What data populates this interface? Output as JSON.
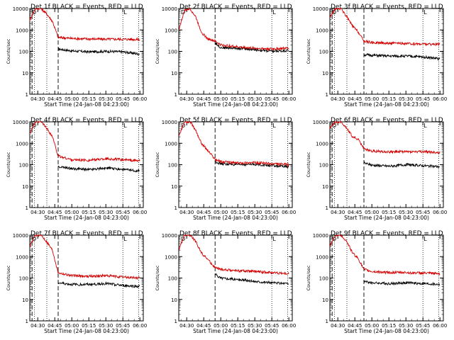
{
  "chart_data": [
    {
      "type": "line",
      "title": "Det 1f BLACK = Events, RED = LLD",
      "xlabel": "Start Time (24-Jan-08 04:23:00)",
      "ylabel": "Counts/sec",
      "yscale": "log",
      "ylim": [
        1,
        10000
      ],
      "xlim": [
        "04:23",
        "06:03"
      ],
      "x_ticks": [
        "04:30",
        "04:45",
        "05:00",
        "05:15",
        "05:30",
        "05:45",
        "06:00"
      ],
      "y_ticks": [
        "1",
        "10",
        "100",
        "1000",
        "10000"
      ],
      "labels": [
        "D",
        "L"
      ],
      "vlines": {
        "dotted": [
          "04:27",
          "04:38",
          "05:45",
          "05:59"
        ],
        "dashed": [
          "04:25",
          "04:48"
        ]
      },
      "series": [
        {
          "name": "Events",
          "color": "#000000",
          "x": [
            "04:48",
            "05:00",
            "05:15",
            "05:30",
            "05:45",
            "06:00"
          ],
          "y": [
            130,
            105,
            95,
            100,
            95,
            75
          ]
        },
        {
          "name": "LLD",
          "color": "#d40000",
          "x": [
            "04:23",
            "04:28",
            "04:33",
            "04:38",
            "04:43",
            "04:48",
            "05:00",
            "05:15",
            "05:30",
            "05:45",
            "06:00"
          ],
          "y": [
            3000,
            10000,
            10000,
            5500,
            2500,
            450,
            400,
            380,
            370,
            370,
            360
          ]
        }
      ]
    },
    {
      "type": "line",
      "title": "Det 2f BLACK = Events, RED = LLD",
      "xlabel": "Start Time (24-Jan-08 04:23:00)",
      "ylabel": "Counts/sec",
      "yscale": "log",
      "ylim": [
        1,
        10000
      ],
      "xlim": [
        "04:23",
        "06:03"
      ],
      "x_ticks": [
        "04:30",
        "04:45",
        "05:00",
        "05:15",
        "05:30",
        "05:45",
        "06:00"
      ],
      "y_ticks": [
        "1",
        "10",
        "100",
        "1000",
        "10000"
      ],
      "labels": [
        "D",
        "L"
      ],
      "vlines": {
        "dotted": [
          "05:45",
          "05:59"
        ],
        "dashed": [
          "04:55"
        ]
      },
      "series": [
        {
          "name": "Events",
          "color": "#000000",
          "x": [
            "04:55",
            "05:00",
            "05:15",
            "05:30",
            "05:45",
            "06:00"
          ],
          "y": [
            250,
            150,
            140,
            120,
            100,
            110
          ]
        },
        {
          "name": "LLD",
          "color": "#d40000",
          "x": [
            "04:23",
            "04:28",
            "04:33",
            "04:38",
            "04:43",
            "04:48",
            "04:55",
            "05:00",
            "05:15",
            "05:30",
            "05:45",
            "06:00"
          ],
          "y": [
            1000,
            8000,
            10000,
            4000,
            800,
            400,
            300,
            200,
            160,
            140,
            130,
            140
          ]
        }
      ]
    },
    {
      "type": "line",
      "title": "Det 3f BLACK = Events, RED = LLD",
      "xlabel": "Start Time (24-Jan-08 04:23:00)",
      "ylabel": "Counts/sec",
      "yscale": "log",
      "ylim": [
        1,
        10000
      ],
      "xlim": [
        "04:23",
        "06:03"
      ],
      "x_ticks": [
        "04:30",
        "04:45",
        "05:00",
        "05:15",
        "05:30",
        "05:45",
        "06:00"
      ],
      "y_ticks": [
        "1",
        "10",
        "100",
        "1000",
        "10000"
      ],
      "labels": [
        "D",
        "L"
      ],
      "vlines": {
        "dotted": [
          "04:27",
          "04:38",
          "05:45",
          "05:59"
        ],
        "dashed": [
          "04:25",
          "04:53"
        ]
      },
      "series": [
        {
          "name": "Events",
          "color": "#000000",
          "x": [
            "04:53",
            "05:00",
            "05:15",
            "05:30",
            "05:45",
            "06:00"
          ],
          "y": [
            70,
            65,
            60,
            60,
            55,
            45
          ]
        },
        {
          "name": "LLD",
          "color": "#d40000",
          "x": [
            "04:23",
            "04:28",
            "04:33",
            "04:38",
            "04:43",
            "04:48",
            "04:53",
            "05:00",
            "05:15",
            "05:30",
            "05:45",
            "06:00"
          ],
          "y": [
            4000,
            10000,
            10000,
            4000,
            1500,
            800,
            300,
            260,
            240,
            230,
            220,
            210
          ]
        }
      ]
    },
    {
      "type": "line",
      "title": "Det 4f BLACK = Events, RED = LLD",
      "xlabel": "Start Time (24-Jan-08 04:23:00)",
      "ylabel": "Counts/sec",
      "yscale": "log",
      "ylim": [
        1,
        10000
      ],
      "xlim": [
        "04:23",
        "06:03"
      ],
      "x_ticks": [
        "04:30",
        "04:45",
        "05:00",
        "05:15",
        "05:30",
        "05:45",
        "06:00"
      ],
      "y_ticks": [
        "1",
        "10",
        "100",
        "1000",
        "10000"
      ],
      "labels": [
        "D",
        "L"
      ],
      "vlines": {
        "dotted": [
          "04:27",
          "04:38",
          "05:45",
          "05:59"
        ],
        "dashed": [
          "04:25",
          "04:48"
        ]
      },
      "series": [
        {
          "name": "Events",
          "color": "#000000",
          "x": [
            "04:48",
            "05:00",
            "05:15",
            "05:30",
            "05:45",
            "06:00"
          ],
          "y": [
            80,
            65,
            60,
            70,
            60,
            50
          ]
        },
        {
          "name": "LLD",
          "color": "#d40000",
          "x": [
            "04:23",
            "04:28",
            "04:33",
            "04:38",
            "04:43",
            "04:48",
            "05:00",
            "05:15",
            "05:30",
            "05:45",
            "06:00"
          ],
          "y": [
            3000,
            10000,
            10000,
            5000,
            2000,
            250,
            170,
            160,
            190,
            170,
            150
          ]
        }
      ]
    },
    {
      "type": "line",
      "title": "Det 5f BLACK = Events, RED = LLD",
      "xlabel": "Start Time (24-Jan-08 04:23:00)",
      "ylabel": "Counts/sec",
      "yscale": "log",
      "ylim": [
        1,
        10000
      ],
      "xlim": [
        "04:23",
        "06:03"
      ],
      "x_ticks": [
        "04:30",
        "04:45",
        "05:00",
        "05:15",
        "05:30",
        "05:45",
        "06:00"
      ],
      "y_ticks": [
        "1",
        "10",
        "100",
        "1000",
        "10000"
      ],
      "labels": [
        "D",
        "L"
      ],
      "vlines": {
        "dotted": [
          "05:45",
          "05:59"
        ],
        "dashed": [
          "04:55"
        ]
      },
      "series": [
        {
          "name": "Events",
          "color": "#000000",
          "x": [
            "04:55",
            "05:00",
            "05:15",
            "05:30",
            "05:45",
            "06:00"
          ],
          "y": [
            140,
            110,
            100,
            105,
            90,
            80
          ]
        },
        {
          "name": "LLD",
          "color": "#d40000",
          "x": [
            "04:23",
            "04:28",
            "04:33",
            "04:38",
            "04:43",
            "04:48",
            "04:55",
            "05:00",
            "05:15",
            "05:30",
            "05:45",
            "06:00"
          ],
          "y": [
            2000,
            10000,
            10000,
            4000,
            1000,
            500,
            180,
            140,
            120,
            125,
            110,
            100
          ]
        }
      ]
    },
    {
      "type": "line",
      "title": "Det 6f BLACK = Events, RED = LLD",
      "xlabel": "Start Time (24-Jan-08 04:23:00)",
      "ylabel": "Counts/sec",
      "yscale": "log",
      "ylim": [
        1,
        10000
      ],
      "xlim": [
        "04:23",
        "06:03"
      ],
      "x_ticks": [
        "04:30",
        "04:45",
        "05:00",
        "05:15",
        "05:30",
        "05:45",
        "06:00"
      ],
      "y_ticks": [
        "1",
        "10",
        "100",
        "1000",
        "10000"
      ],
      "labels": [
        "D",
        "L"
      ],
      "vlines": {
        "dotted": [
          "04:27",
          "04:38",
          "05:45",
          "05:59"
        ],
        "dashed": [
          "04:25",
          "04:53"
        ]
      },
      "series": [
        {
          "name": "Events",
          "color": "#000000",
          "x": [
            "04:53",
            "05:00",
            "05:15",
            "05:30",
            "05:45",
            "06:00"
          ],
          "y": [
            120,
            95,
            85,
            100,
            90,
            80
          ]
        },
        {
          "name": "LLD",
          "color": "#d40000",
          "x": [
            "04:23",
            "04:28",
            "04:33",
            "04:38",
            "04:43",
            "04:48",
            "04:53",
            "05:00",
            "05:15",
            "05:30",
            "05:45",
            "06:00"
          ],
          "y": [
            5000,
            10000,
            10000,
            5000,
            2000,
            1500,
            550,
            430,
            400,
            400,
            400,
            360
          ]
        }
      ]
    },
    {
      "type": "line",
      "title": "Det 7f BLACK = Events, RED = LLD",
      "xlabel": "Start Time (24-Jan-08 04:23:00)",
      "ylabel": "Counts/sec",
      "yscale": "log",
      "ylim": [
        1,
        10000
      ],
      "xlim": [
        "04:23",
        "06:03"
      ],
      "x_ticks": [
        "04:30",
        "04:45",
        "05:00",
        "05:15",
        "05:30",
        "05:45",
        "06:00"
      ],
      "y_ticks": [
        "1",
        "10",
        "100",
        "1000",
        "10000"
      ],
      "labels": [
        "D",
        "L"
      ],
      "vlines": {
        "dotted": [
          "04:27",
          "04:38",
          "05:45",
          "05:59"
        ],
        "dashed": [
          "04:25",
          "04:48"
        ]
      },
      "series": [
        {
          "name": "Events",
          "color": "#000000",
          "x": [
            "04:48",
            "05:00",
            "05:15",
            "05:30",
            "05:45",
            "06:00"
          ],
          "y": [
            60,
            50,
            50,
            55,
            45,
            40
          ]
        },
        {
          "name": "LLD",
          "color": "#d40000",
          "x": [
            "04:23",
            "04:28",
            "04:33",
            "04:38",
            "04:43",
            "04:48",
            "05:00",
            "05:15",
            "05:30",
            "05:45",
            "06:00"
          ],
          "y": [
            3000,
            10000,
            10000,
            5000,
            2000,
            180,
            130,
            120,
            130,
            110,
            100
          ]
        }
      ]
    },
    {
      "type": "line",
      "title": "Det 8f BLACK = Events, RED = LLD",
      "xlabel": "Start Time (24-Jan-08 04:23:00)",
      "ylabel": "Counts/sec",
      "yscale": "log",
      "ylim": [
        1,
        10000
      ],
      "xlim": [
        "04:23",
        "06:03"
      ],
      "x_ticks": [
        "04:30",
        "04:45",
        "05:00",
        "05:15",
        "05:30",
        "05:45",
        "06:00"
      ],
      "y_ticks": [
        "1",
        "10",
        "100",
        "1000",
        "10000"
      ],
      "labels": [
        "D",
        "L"
      ],
      "vlines": {
        "dotted": [
          "05:45",
          "05:59"
        ],
        "dashed": [
          "04:55"
        ]
      },
      "series": [
        {
          "name": "Events",
          "color": "#000000",
          "x": [
            "04:55",
            "05:00",
            "05:15",
            "05:30",
            "05:45",
            "06:00"
          ],
          "y": [
            150,
            100,
            85,
            70,
            60,
            55
          ]
        },
        {
          "name": "LLD",
          "color": "#d40000",
          "x": [
            "04:23",
            "04:28",
            "04:33",
            "04:38",
            "04:43",
            "04:48",
            "04:55",
            "05:00",
            "05:15",
            "05:30",
            "05:45",
            "06:00"
          ],
          "y": [
            2000,
            10000,
            10000,
            5000,
            1500,
            800,
            300,
            250,
            220,
            200,
            180,
            160
          ]
        }
      ]
    },
    {
      "type": "line",
      "title": "Det 9f BLACK = Events, RED = LLD",
      "xlabel": "Start Time (24-Jan-08 04:23:00)",
      "ylabel": "Counts/sec",
      "yscale": "log",
      "ylim": [
        1,
        10000
      ],
      "xlim": [
        "04:23",
        "06:03"
      ],
      "x_ticks": [
        "04:30",
        "04:45",
        "05:00",
        "05:15",
        "05:30",
        "05:45",
        "06:00"
      ],
      "y_ticks": [
        "1",
        "10",
        "100",
        "1000",
        "10000"
      ],
      "labels": [
        "D",
        "L"
      ],
      "vlines": {
        "dotted": [
          "04:27",
          "04:38",
          "05:45",
          "05:59"
        ],
        "dashed": [
          "04:25",
          "04:53"
        ]
      },
      "series": [
        {
          "name": "Events",
          "color": "#000000",
          "x": [
            "04:53",
            "05:00",
            "05:15",
            "05:30",
            "05:45",
            "06:00"
          ],
          "y": [
            70,
            60,
            55,
            60,
            55,
            50
          ]
        },
        {
          "name": "LLD",
          "color": "#d40000",
          "x": [
            "04:23",
            "04:28",
            "04:33",
            "04:38",
            "04:43",
            "04:48",
            "04:53",
            "05:00",
            "05:15",
            "05:30",
            "05:45",
            "06:00"
          ],
          "y": [
            3000,
            10000,
            10000,
            5000,
            1500,
            800,
            250,
            200,
            180,
            180,
            170,
            160
          ]
        }
      ]
    }
  ]
}
